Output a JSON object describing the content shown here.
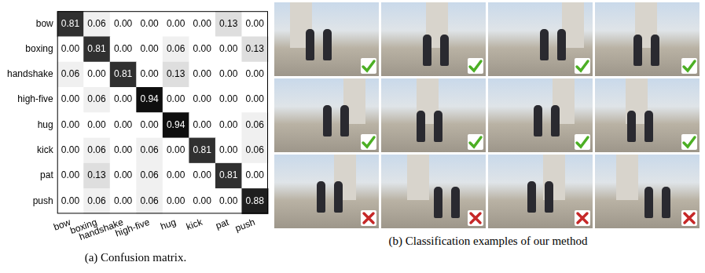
{
  "chart_data": {
    "type": "heatmap",
    "title": "(a) Confusion matrix.",
    "categories": [
      "bow",
      "boxing",
      "handshake",
      "high-five",
      "hug",
      "kick",
      "pat",
      "push"
    ],
    "cells": [
      [
        0.81,
        0.06,
        0,
        0,
        0,
        0,
        0.13,
        0
      ],
      [
        0,
        0.81,
        0,
        0,
        0.06,
        0,
        0,
        0.13
      ],
      [
        0.06,
        0,
        0.81,
        0,
        0.13,
        0,
        0,
        0
      ],
      [
        0,
        0.06,
        0,
        0.94,
        0,
        0,
        0,
        0
      ],
      [
        0,
        0,
        0,
        0,
        0.94,
        0,
        0,
        0.06
      ],
      [
        0,
        0.06,
        0,
        0.06,
        0,
        0.81,
        0,
        0.06
      ],
      [
        0,
        0.13,
        0,
        0.06,
        0,
        0,
        0.81,
        0
      ],
      [
        0,
        0.06,
        0,
        0.06,
        0,
        0,
        0,
        0.88
      ]
    ],
    "value_labels": [
      [
        "0.81",
        "0.06",
        "0.00",
        "0.00",
        "0.00",
        "0.00",
        "0.13",
        "0.00"
      ],
      [
        "0.00",
        "0.81",
        "0.00",
        "0.00",
        "0.06",
        "0.00",
        "0.00",
        "0.13"
      ],
      [
        "0.06",
        "0.00",
        "0.81",
        "0.00",
        "0.13",
        "0.00",
        "0.00",
        "0.00"
      ],
      [
        "0.00",
        "0.06",
        "0.00",
        "0.94",
        "0.00",
        "0.00",
        "0.00",
        "0.00"
      ],
      [
        "0.00",
        "0.00",
        "0.00",
        "0.00",
        "0.94",
        "0.00",
        "0.00",
        "0.06"
      ],
      [
        "0.00",
        "0.06",
        "0.00",
        "0.06",
        "0.00",
        "0.81",
        "0.00",
        "0.06"
      ],
      [
        "0.00",
        "0.13",
        "0.00",
        "0.06",
        "0.00",
        "0.00",
        "0.81",
        "0.00"
      ],
      [
        "0.00",
        "0.06",
        "0.00",
        "0.06",
        "0.00",
        "0.00",
        "0.00",
        "0.88"
      ]
    ],
    "data_labels": true,
    "grid": false
  },
  "examples": {
    "caption": "(b) Classification examples of our method",
    "correct": [
      true,
      true,
      true,
      true,
      true,
      true,
      true,
      true,
      false,
      false,
      false,
      false
    ]
  }
}
